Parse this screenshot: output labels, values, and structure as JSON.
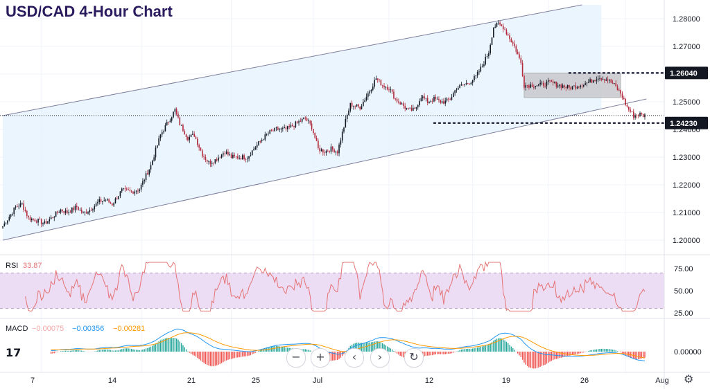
{
  "title": "USD/CAD 4-Hour Chart",
  "logo_text": "17",
  "controls": {
    "zoom_out": "−",
    "zoom_in": "+",
    "scroll_left": "‹",
    "scroll_right": "›",
    "reset": "↻",
    "settings": "⚙"
  },
  "colors": {
    "up": "#26a69a",
    "down": "#ef5350",
    "candle_up": "#131722",
    "candle_down": "#b2283a",
    "channel_fill": "#e3f2fd",
    "rsi": "#e57373",
    "rsi_band": "#ecdcf4",
    "macd_line": "#2196f3",
    "signal_line": "#ff9800",
    "hist_up": "#26a69a",
    "hist_down": "#ef5350"
  },
  "chart_data": {
    "type": "candlestick",
    "title": "USD/CAD 4-Hour Chart",
    "ylim": [
      1.195,
      1.284
    ],
    "y_ticks": [
      "1.28000",
      "1.27000",
      "1.26000",
      "1.25000",
      "1.24000",
      "1.23000",
      "1.22000",
      "1.21000",
      "1.20000"
    ],
    "x_ticks": [
      "7",
      "14",
      "21",
      "25",
      "Jul",
      "12",
      "19",
      "26",
      "Aug"
    ],
    "levels": [
      {
        "label": "1.26040",
        "value": 1.2604
      },
      {
        "label": "1.24230",
        "value": 1.2423
      }
    ],
    "current_price": 1.245,
    "price_path": [
      [
        0,
        1.205
      ],
      [
        8,
        1.212
      ],
      [
        12,
        1.213
      ],
      [
        16,
        1.208
      ],
      [
        22,
        1.207
      ],
      [
        26,
        1.206
      ],
      [
        32,
        1.209
      ],
      [
        36,
        1.211
      ],
      [
        40,
        1.21
      ],
      [
        46,
        1.212
      ],
      [
        50,
        1.2095
      ],
      [
        54,
        1.211
      ],
      [
        60,
        1.214
      ],
      [
        64,
        1.2145
      ],
      [
        68,
        1.213
      ],
      [
        74,
        1.218
      ],
      [
        80,
        1.2175
      ],
      [
        85,
        1.2185
      ],
      [
        92,
        1.227
      ],
      [
        98,
        1.238
      ],
      [
        104,
        1.244
      ],
      [
        107,
        1.247
      ],
      [
        110,
        1.242
      ],
      [
        115,
        1.237
      ],
      [
        119,
        1.238
      ],
      [
        124,
        1.231
      ],
      [
        128,
        1.228
      ],
      [
        132,
        1.229
      ],
      [
        138,
        1.232
      ],
      [
        142,
        1.23
      ],
      [
        148,
        1.23
      ],
      [
        152,
        1.23
      ],
      [
        156,
        1.233
      ],
      [
        162,
        1.237
      ],
      [
        166,
        1.239
      ],
      [
        170,
        1.24
      ],
      [
        176,
        1.24
      ],
      [
        182,
        1.242
      ],
      [
        188,
        1.244
      ],
      [
        192,
        1.241
      ],
      [
        196,
        1.233
      ],
      [
        200,
        1.232
      ],
      [
        204,
        1.233
      ],
      [
        208,
        1.232
      ],
      [
        212,
        1.241
      ],
      [
        216,
        1.249
      ],
      [
        222,
        1.248
      ],
      [
        228,
        1.254
      ],
      [
        232,
        1.2585
      ],
      [
        236,
        1.256
      ],
      [
        240,
        1.255
      ],
      [
        244,
        1.251
      ],
      [
        248,
        1.249
      ],
      [
        252,
        1.247
      ],
      [
        256,
        1.247
      ],
      [
        260,
        1.252
      ],
      [
        264,
        1.25
      ],
      [
        268,
        1.251
      ],
      [
        272,
        1.25
      ],
      [
        275,
        1.25
      ],
      [
        278,
        1.251
      ],
      [
        282,
        1.255
      ],
      [
        286,
        1.256
      ],
      [
        290,
        1.257
      ],
      [
        294,
        1.259
      ],
      [
        298,
        1.263
      ],
      [
        302,
        1.268
      ],
      [
        305,
        1.277
      ],
      [
        308,
        1.278
      ],
      [
        311,
        1.277
      ],
      [
        314,
        1.274
      ],
      [
        318,
        1.27
      ],
      [
        322,
        1.264
      ],
      [
        324,
        1.256
      ],
      [
        328,
        1.256
      ],
      [
        334,
        1.256
      ],
      [
        340,
        1.257
      ],
      [
        346,
        1.256
      ],
      [
        352,
        1.255
      ],
      [
        358,
        1.256
      ],
      [
        364,
        1.257
      ],
      [
        370,
        1.259
      ],
      [
        376,
        1.258
      ],
      [
        380,
        1.256
      ],
      [
        384,
        1.253
      ],
      [
        388,
        1.248
      ],
      [
        392,
        1.245
      ],
      [
        396,
        1.2455
      ],
      [
        398,
        1.245
      ]
    ],
    "channel": {
      "upper": [
        [
          0,
          1.245
        ],
        [
          360,
          1.285
        ]
      ],
      "lower": [
        [
          0,
          1.2
        ],
        [
          400,
          1.251
        ]
      ]
    },
    "consolidation_box": {
      "x_range": [
        324,
        384
      ],
      "y_range": [
        1.2515,
        1.2604
      ]
    },
    "indicators": {
      "rsi": {
        "label": "RSI",
        "value": "33.87",
        "ylim": [
          20,
          85
        ],
        "ticks": [
          "75.00",
          "50.00",
          "25.00"
        ],
        "band": [
          30,
          70
        ]
      },
      "macd": {
        "label": "MACD",
        "hist_value": "−0.00075",
        "macd_value": "−0.00356",
        "signal_value": "−0.00281",
        "tick": "0.00000"
      }
    }
  }
}
